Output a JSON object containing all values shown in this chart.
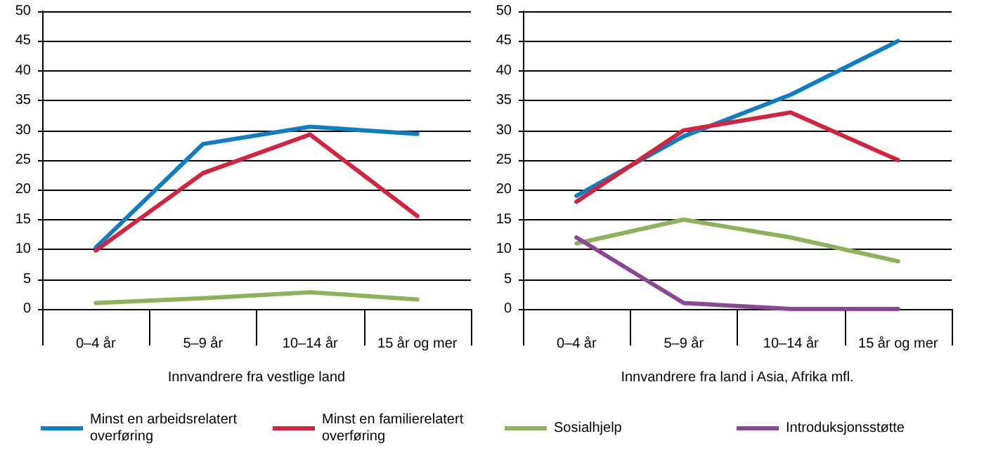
{
  "chart_data": [
    {
      "type": "line",
      "xlabel": "Innvandrere fra vestlige land",
      "categories": [
        "0–4 år",
        "5–9 år",
        "10–14 år",
        "15 år og mer"
      ],
      "ylim": [
        0,
        50
      ],
      "yticks": [
        0,
        5,
        10,
        15,
        20,
        25,
        30,
        35,
        40,
        45,
        50
      ],
      "grid": "y",
      "legend": "bottom",
      "marker": "none",
      "series": [
        {
          "name": "Minst en arbeidsrelatert overføring",
          "color": "#0e7dc2",
          "values": [
            10.3,
            27.7,
            30.6,
            29.4
          ]
        },
        {
          "name": "Minst en familierelatert overføring",
          "color": "#d2243f",
          "values": [
            9.8,
            22.8,
            29.3,
            15.6
          ]
        },
        {
          "name": "Sosialhjelp",
          "color": "#8db25a",
          "values": [
            1.0,
            1.8,
            2.8,
            1.6
          ]
        }
      ]
    },
    {
      "type": "line",
      "xlabel": "Innvandrere fra land i Asia, Afrika mfl.",
      "categories": [
        "0–4 år",
        "5–9 år",
        "10–14 år",
        "15 år og mer"
      ],
      "ylim": [
        0,
        50
      ],
      "yticks": [
        0,
        5,
        10,
        15,
        20,
        25,
        30,
        35,
        40,
        45,
        50
      ],
      "grid": "y",
      "legend": "bottom",
      "marker": "none",
      "series": [
        {
          "name": "Minst en arbeidsrelatert overføring",
          "color": "#0e7dc2",
          "values": [
            19,
            29,
            36,
            45
          ]
        },
        {
          "name": "Minst en familierelatert overføring",
          "color": "#d2243f",
          "values": [
            18,
            30,
            33,
            25
          ]
        },
        {
          "name": "Sosialhjelp",
          "color": "#8db25a",
          "values": [
            11,
            15,
            12,
            8
          ]
        },
        {
          "name": "Introduksjonsstøtte",
          "color": "#8a4893",
          "values": [
            12,
            1,
            0,
            0
          ]
        }
      ]
    }
  ]
}
